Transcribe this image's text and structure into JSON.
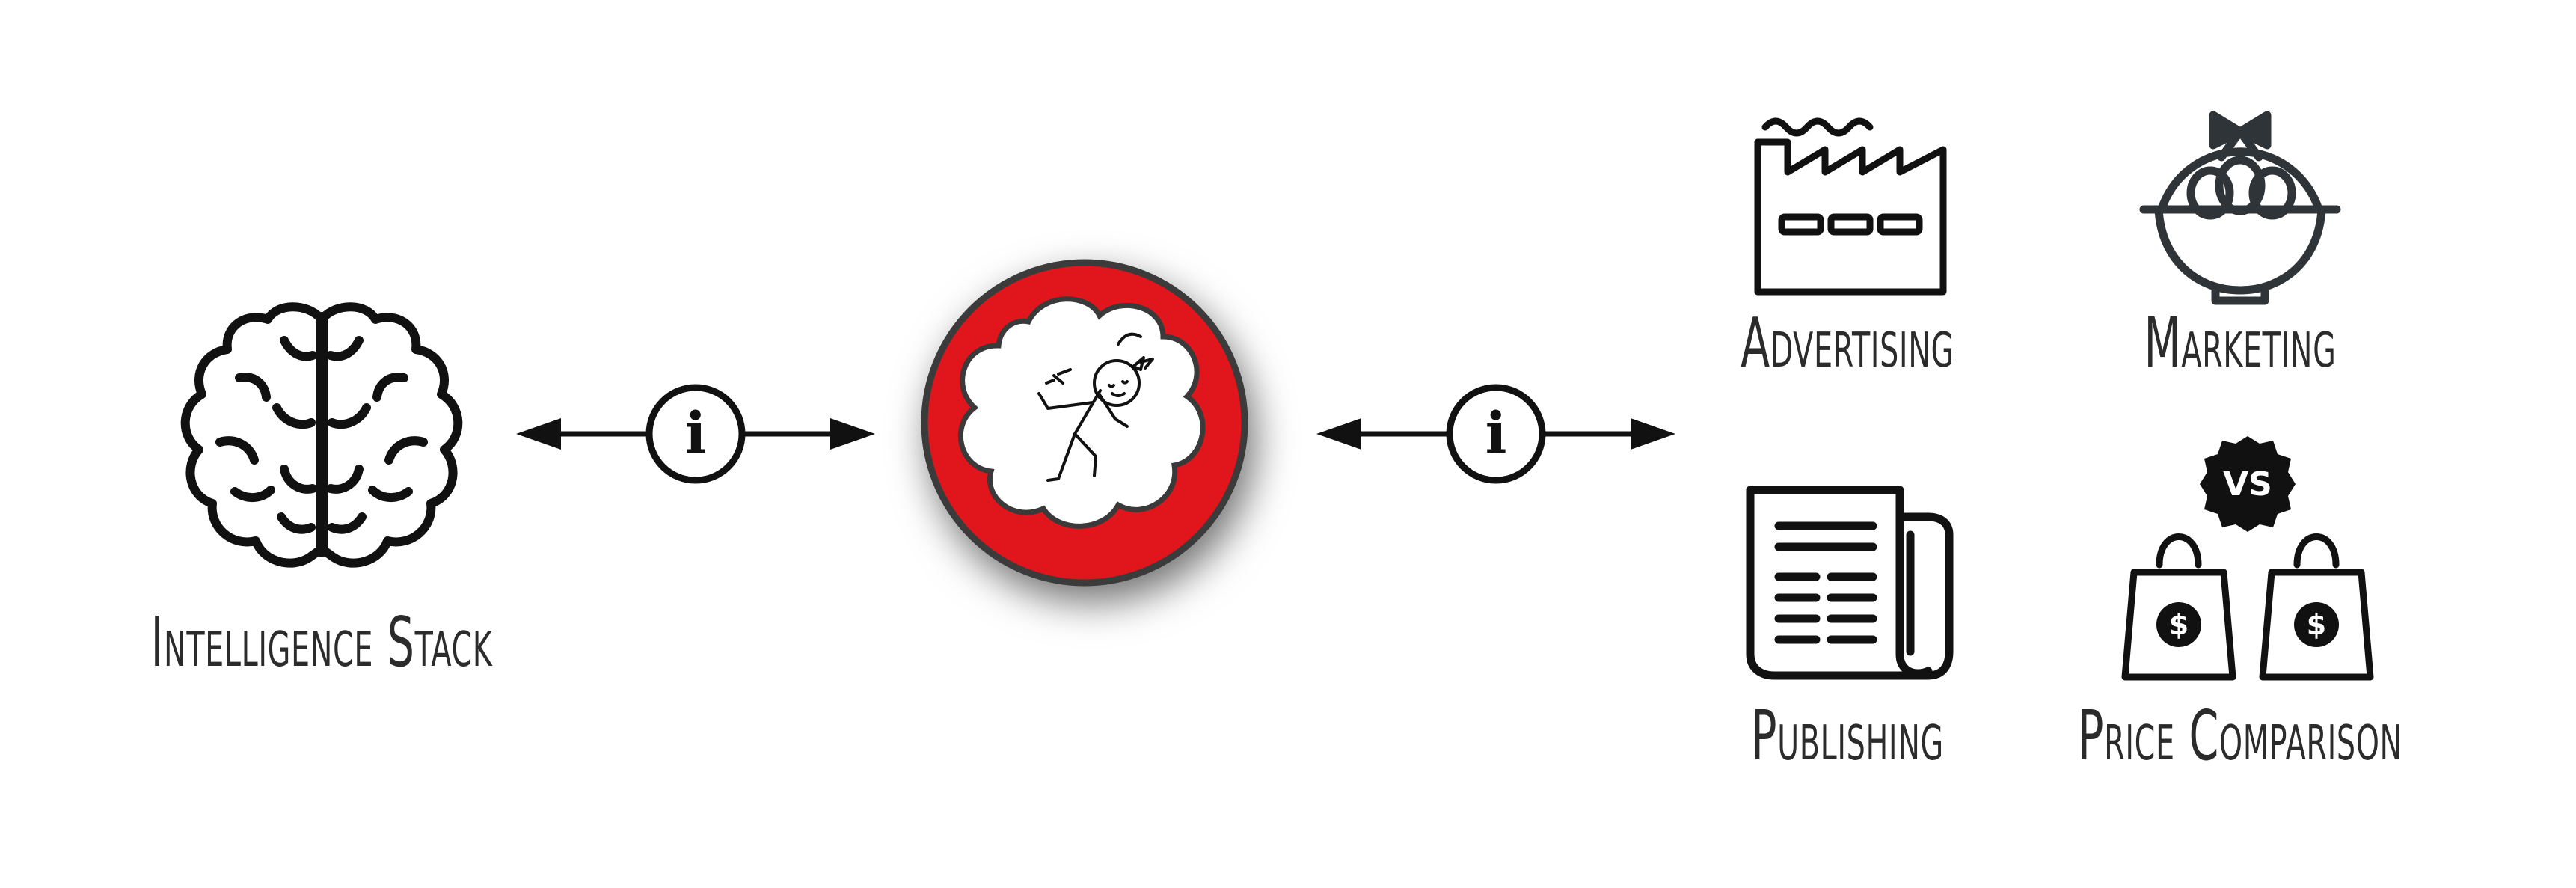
{
  "labels": {
    "intelligence_stack": "Intelligence Stack",
    "advertising": "Advertising",
    "marketing": "Marketing",
    "publishing": "Publishing",
    "price_comparison": "Price Comparison"
  },
  "info_glyph": "i",
  "vs_badge": "VS",
  "dollar_sign": "$",
  "colors": {
    "ink": "#111111",
    "label": "#2b2b2b",
    "center_red": "#e1191f",
    "icon_gray": "#2f3438"
  },
  "icons": {
    "brain": "brain-icon",
    "center": "stick-figure-cloud-icon",
    "factory": "factory-icon",
    "basket": "egg-basket-icon",
    "newspaper": "newspaper-icon",
    "shopping_bags": "shopping-bags-icon",
    "info": "info-icon",
    "arrow": "double-arrow-icon"
  }
}
